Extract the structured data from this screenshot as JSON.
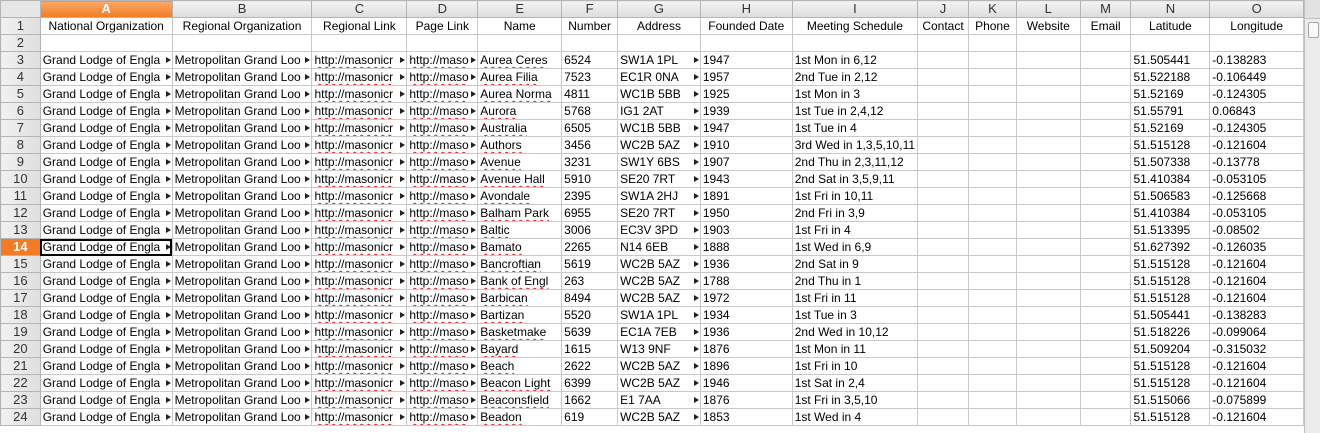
{
  "columns": [
    "A",
    "B",
    "C",
    "D",
    "E",
    "F",
    "G",
    "H",
    "I",
    "J",
    "K",
    "L",
    "M",
    "N",
    "O"
  ],
  "active_column": "A",
  "active_row": "14",
  "header_row": {
    "number": "1",
    "cells": [
      "National Organization",
      "Regional Organization",
      "Regional Link",
      "Page Link",
      "Name",
      "Number",
      "Address",
      "Founded Date",
      "Meeting Schedule",
      "Contact",
      "Phone",
      "Website",
      "Email",
      "Latitude",
      "Longitude"
    ]
  },
  "empty_row_number": "2",
  "rows": [
    {
      "n": "3",
      "a": "Grand Lodge of Engla",
      "b": "Metropolitan Grand Loo",
      "c": "http://masonicr",
      "d": "http://maso",
      "name": "Aurea Ceres",
      "num": "6524",
      "addr": "SW1A 1PL",
      "date": "1947",
      "sched": "1st Mon in 6,12",
      "lat": "51.505441",
      "lon": "-0.138283"
    },
    {
      "n": "4",
      "a": "Grand Lodge of Engla",
      "b": "Metropolitan Grand Loo",
      "c": "http://masonicr",
      "d": "http://maso",
      "name": "Aurea Filia",
      "num": "7523",
      "addr": "EC1R 0NA",
      "date": "1957",
      "sched": "2nd Tue in 2,12",
      "lat": "51.522188",
      "lon": "-0.106449"
    },
    {
      "n": "5",
      "a": "Grand Lodge of Engla",
      "b": "Metropolitan Grand Loo",
      "c": "http://masonicr",
      "d": "http://maso",
      "name": "Aurea Norma",
      "num": "4811",
      "addr": "WC1B 5BB",
      "date": "1925",
      "sched": "1st Mon in 3",
      "lat": "51.52169",
      "lon": "-0.124305"
    },
    {
      "n": "6",
      "a": "Grand Lodge of Engla",
      "b": "Metropolitan Grand Loo",
      "c": "http://masonicr",
      "d": "http://maso",
      "name": "Aurora",
      "num": "5768",
      "addr": "IG1 2AT",
      "date": "1939",
      "sched": "1st Tue in 2,4,12",
      "lat": "51.55791",
      "lon": "0.06843"
    },
    {
      "n": "7",
      "a": "Grand Lodge of Engla",
      "b": "Metropolitan Grand Loo",
      "c": "http://masonicr",
      "d": "http://maso",
      "name": "Australia",
      "num": "6505",
      "addr": "WC1B 5BB",
      "date": "1947",
      "sched": "1st Tue in 4",
      "lat": "51.52169",
      "lon": "-0.124305"
    },
    {
      "n": "8",
      "a": "Grand Lodge of Engla",
      "b": "Metropolitan Grand Loo",
      "c": "http://masonicr",
      "d": "http://maso",
      "name": "Authors",
      "num": "3456",
      "addr": "WC2B 5AZ",
      "date": "1910",
      "sched": "3rd Wed in 1,3,5,10,11",
      "lat": "51.515128",
      "lon": "-0.121604"
    },
    {
      "n": "9",
      "a": "Grand Lodge of Engla",
      "b": "Metropolitan Grand Loo",
      "c": "http://masonicr",
      "d": "http://maso",
      "name": "Avenue",
      "num": "3231",
      "addr": "SW1Y 6BS",
      "date": "1907",
      "sched": "2nd Thu in 2,3,11,12",
      "lat": "51.507338",
      "lon": "-0.13778"
    },
    {
      "n": "10",
      "a": "Grand Lodge of Engla",
      "b": "Metropolitan Grand Loo",
      "c": "http://masonicr",
      "d": "http://maso",
      "name": "Avenue Hall",
      "num": "5910",
      "addr": "SE20 7RT",
      "date": "1943",
      "sched": "2nd Sat in 3,5,9,11",
      "lat": "51.410384",
      "lon": "-0.053105"
    },
    {
      "n": "11",
      "a": "Grand Lodge of Engla",
      "b": "Metropolitan Grand Loo",
      "c": "http://masonicr",
      "d": "http://maso",
      "name": "Avondale",
      "num": "2395",
      "addr": "SW1A 2HJ",
      "date": "1891",
      "sched": "1st Fri in 10,11",
      "lat": "51.506583",
      "lon": "-0.125668"
    },
    {
      "n": "12",
      "a": "Grand Lodge of Engla",
      "b": "Metropolitan Grand Loo",
      "c": "http://masonicr",
      "d": "http://maso",
      "name": "Balham Park",
      "num": "6955",
      "addr": "SE20 7RT",
      "date": "1950",
      "sched": "2nd Fri in 3,9",
      "lat": "51.410384",
      "lon": "-0.053105"
    },
    {
      "n": "13",
      "a": "Grand Lodge of Engla",
      "b": "Metropolitan Grand Loo",
      "c": "http://masonicr",
      "d": "http://maso",
      "name": "Baltic",
      "num": "3006",
      "addr": "EC3V 3PD",
      "date": "1903",
      "sched": "1st Fri in 4",
      "lat": "51.513395",
      "lon": "-0.08502"
    },
    {
      "n": "14",
      "a": "Grand Lodge of Engla",
      "b": "Metropolitan Grand Loo",
      "c": "http://masonicr",
      "d": "http://maso",
      "name": "Bamato",
      "num": "2265",
      "addr": "N14 6EB",
      "date": "1888",
      "sched": "1st Wed in 6,9",
      "lat": "51.627392",
      "lon": "-0.126035"
    },
    {
      "n": "15",
      "a": "Grand Lodge of Engla",
      "b": "Metropolitan Grand Loo",
      "c": "http://masonicr",
      "d": "http://maso",
      "name": "Bancroftian",
      "num": "5619",
      "addr": "WC2B 5AZ",
      "date": "1936",
      "sched": "2nd Sat in 9",
      "lat": "51.515128",
      "lon": "-0.121604"
    },
    {
      "n": "16",
      "a": "Grand Lodge of Engla",
      "b": "Metropolitan Grand Loo",
      "c": "http://masonicr",
      "d": "http://maso",
      "name": "Bank of Engl",
      "num": "263",
      "addr": "WC2B 5AZ",
      "date": "1788",
      "sched": "2nd Thu in 1",
      "lat": "51.515128",
      "lon": "-0.121604"
    },
    {
      "n": "17",
      "a": "Grand Lodge of Engla",
      "b": "Metropolitan Grand Loo",
      "c": "http://masonicr",
      "d": "http://maso",
      "name": "Barbican",
      "num": "8494",
      "addr": "WC2B 5AZ",
      "date": "1972",
      "sched": "1st Fri in 11",
      "lat": "51.515128",
      "lon": "-0.121604"
    },
    {
      "n": "18",
      "a": "Grand Lodge of Engla",
      "b": "Metropolitan Grand Loo",
      "c": "http://masonicr",
      "d": "http://maso",
      "name": "Bartizan",
      "num": "5520",
      "addr": "SW1A 1PL",
      "date": "1934",
      "sched": "1st Tue in 3",
      "lat": "51.505441",
      "lon": "-0.138283"
    },
    {
      "n": "19",
      "a": "Grand Lodge of Engla",
      "b": "Metropolitan Grand Loo",
      "c": "http://masonicr",
      "d": "http://maso",
      "name": "Basketmake",
      "num": "5639",
      "addr": "EC1A 7EB",
      "date": "1936",
      "sched": "2nd Wed in 10,12",
      "lat": "51.518226",
      "lon": "-0.099064"
    },
    {
      "n": "20",
      "a": "Grand Lodge of Engla",
      "b": "Metropolitan Grand Loo",
      "c": "http://masonicr",
      "d": "http://maso",
      "name": "Bayard",
      "num": "1615",
      "addr": "W13 9NF",
      "date": "1876",
      "sched": "1st Mon in 11",
      "lat": "51.509204",
      "lon": "-0.315032"
    },
    {
      "n": "21",
      "a": "Grand Lodge of Engla",
      "b": "Metropolitan Grand Loo",
      "c": "http://masonicr",
      "d": "http://maso",
      "name": "Beach",
      "num": "2622",
      "addr": "WC2B 5AZ",
      "date": "1896",
      "sched": "1st Fri in 10",
      "lat": "51.515128",
      "lon": "-0.121604"
    },
    {
      "n": "22",
      "a": "Grand Lodge of Engla",
      "b": "Metropolitan Grand Loo",
      "c": "http://masonicr",
      "d": "http://maso",
      "name": "Beacon Light",
      "num": "6399",
      "addr": "WC2B 5AZ",
      "date": "1946",
      "sched": "1st Sat in 2,4",
      "lat": "51.515128",
      "lon": "-0.121604"
    },
    {
      "n": "23",
      "a": "Grand Lodge of Engla",
      "b": "Metropolitan Grand Loo",
      "c": "http://masonicr",
      "d": "http://maso",
      "name": "Beaconsfield",
      "num": "1662",
      "addr": "E1 7AA",
      "date": "1876",
      "sched": "1st Fri in 3,5,10",
      "lat": "51.515066",
      "lon": "-0.075899"
    },
    {
      "n": "24",
      "a": "Grand Lodge of Engla",
      "b": "Metropolitan Grand Loo",
      "c": "http://masonicr",
      "d": "http://maso",
      "name": "Beadon",
      "num": "619",
      "addr": "WC2B 5AZ",
      "date": "1853",
      "sched": "1st Wed in 4",
      "lat": "51.515128",
      "lon": "-0.121604"
    }
  ],
  "colors": {
    "active_header": "#f37b24",
    "grid": "#c9c9c9",
    "spell_underline": "#e02020"
  }
}
